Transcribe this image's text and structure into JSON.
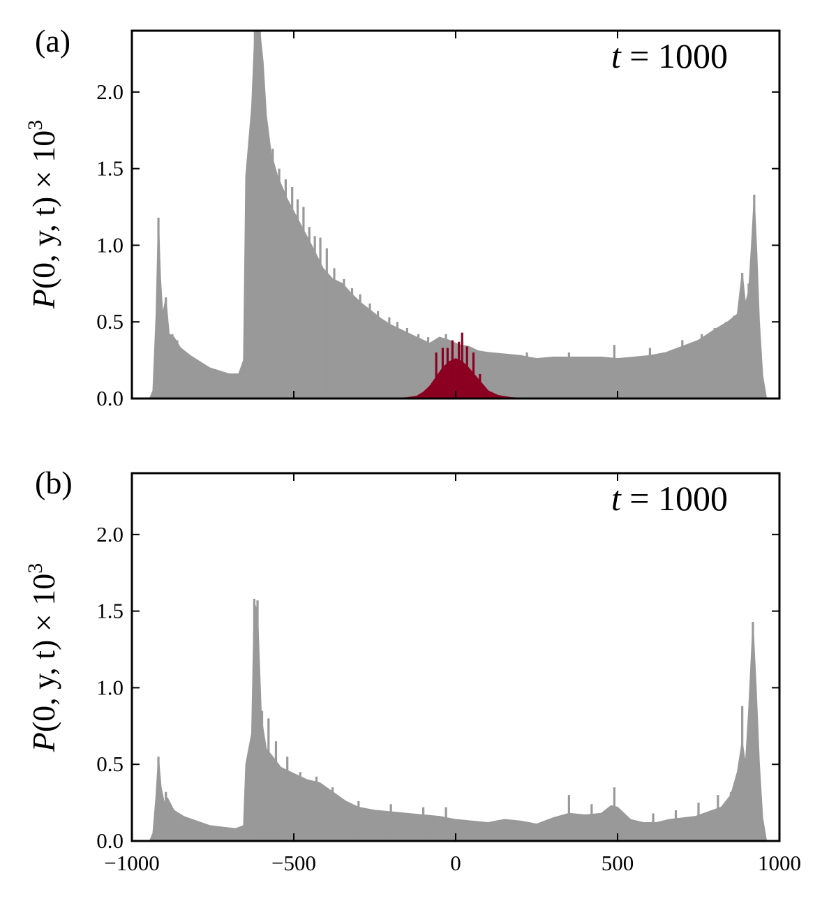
{
  "chart_data": [
    {
      "type": "area",
      "panel_label": "(a)",
      "annotation": {
        "text": "t = 1000",
        "var": "t",
        "eq": "=",
        "value": "1000"
      },
      "ylabel": {
        "prefix": "P",
        "args": "(0, y, t)",
        "times": "×",
        "base": "10",
        "exp": "3"
      },
      "xlim": [
        -1000,
        1000
      ],
      "ylim": [
        0,
        2.4
      ],
      "xticks": [
        -1000,
        -500,
        0,
        500,
        1000
      ],
      "show_xticklabels": false,
      "yticks": [
        0.0,
        0.5,
        1.0,
        1.5,
        2.0
      ],
      "ytick_labels": [
        "0.0",
        "0.5",
        "1.0",
        "1.5",
        "2.0"
      ],
      "series": [
        {
          "name": "gray",
          "color": "#999999",
          "envelope": [
            [
              -945,
              0.0
            ],
            [
              -935,
              0.05
            ],
            [
              -925,
              0.55
            ],
            [
              -918,
              1.18
            ],
            [
              -912,
              0.8
            ],
            [
              -905,
              0.55
            ],
            [
              -895,
              0.65
            ],
            [
              -885,
              0.42
            ],
            [
              -870,
              0.4
            ],
            [
              -850,
              0.33
            ],
            [
              -820,
              0.28
            ],
            [
              -790,
              0.24
            ],
            [
              -760,
              0.2
            ],
            [
              -730,
              0.18
            ],
            [
              -700,
              0.16
            ],
            [
              -670,
              0.16
            ],
            [
              -655,
              0.25
            ],
            [
              -648,
              1.45
            ],
            [
              -630,
              1.9
            ],
            [
              -620,
              2.4
            ],
            [
              -605,
              2.4
            ],
            [
              -595,
              2.2
            ],
            [
              -585,
              1.85
            ],
            [
              -570,
              1.6
            ],
            [
              -550,
              1.45
            ],
            [
              -520,
              1.3
            ],
            [
              -500,
              1.22
            ],
            [
              -470,
              1.1
            ],
            [
              -440,
              0.98
            ],
            [
              -410,
              0.85
            ],
            [
              -380,
              0.78
            ],
            [
              -350,
              0.75
            ],
            [
              -320,
              0.68
            ],
            [
              -290,
              0.62
            ],
            [
              -260,
              0.57
            ],
            [
              -230,
              0.52
            ],
            [
              -200,
              0.48
            ],
            [
              -170,
              0.45
            ],
            [
              -140,
              0.42
            ],
            [
              -110,
              0.39
            ],
            [
              -80,
              0.36
            ],
            [
              -50,
              0.4
            ],
            [
              -20,
              0.38
            ],
            [
              10,
              0.35
            ],
            [
              40,
              0.34
            ],
            [
              70,
              0.31
            ],
            [
              100,
              0.3
            ],
            [
              150,
              0.29
            ],
            [
              200,
              0.28
            ],
            [
              250,
              0.26
            ],
            [
              300,
              0.27
            ],
            [
              350,
              0.27
            ],
            [
              400,
              0.27
            ],
            [
              450,
              0.27
            ],
            [
              500,
              0.26
            ],
            [
              550,
              0.27
            ],
            [
              600,
              0.28
            ],
            [
              650,
              0.3
            ],
            [
              700,
              0.34
            ],
            [
              750,
              0.38
            ],
            [
              800,
              0.45
            ],
            [
              840,
              0.5
            ],
            [
              870,
              0.55
            ],
            [
              885,
              0.82
            ],
            [
              895,
              0.62
            ],
            [
              905,
              0.7
            ],
            [
              915,
              1.05
            ],
            [
              922,
              1.32
            ],
            [
              930,
              0.95
            ],
            [
              938,
              0.5
            ],
            [
              948,
              0.15
            ],
            [
              960,
              0.0
            ]
          ],
          "spikes": [
            [
              -918,
              1.18
            ],
            [
              -895,
              0.66
            ],
            [
              -875,
              0.42
            ],
            [
              -860,
              0.38
            ],
            [
              -620,
              2.4
            ],
            [
              -605,
              2.4
            ],
            [
              -585,
              1.75
            ],
            [
              -565,
              1.63
            ],
            [
              -545,
              1.5
            ],
            [
              -525,
              1.43
            ],
            [
              -505,
              1.38
            ],
            [
              -488,
              1.3
            ],
            [
              -470,
              1.25
            ],
            [
              -452,
              1.12
            ],
            [
              -435,
              1.06
            ],
            [
              -418,
              1.05
            ],
            [
              -398,
              0.98
            ],
            [
              -375,
              0.85
            ],
            [
              -345,
              0.78
            ],
            [
              -320,
              0.72
            ],
            [
              -295,
              0.68
            ],
            [
              -265,
              0.62
            ],
            [
              -240,
              0.57
            ],
            [
              -205,
              0.53
            ],
            [
              -180,
              0.5
            ],
            [
              -150,
              0.46
            ],
            [
              -115,
              0.42
            ],
            [
              -85,
              0.4
            ],
            [
              -30,
              0.42
            ],
            [
              220,
              0.3
            ],
            [
              350,
              0.3
            ],
            [
              490,
              0.35
            ],
            [
              600,
              0.33
            ],
            [
              700,
              0.38
            ],
            [
              760,
              0.42
            ],
            [
              800,
              0.46
            ],
            [
              835,
              0.5
            ],
            [
              860,
              0.54
            ],
            [
              885,
              0.82
            ],
            [
              905,
              0.75
            ],
            [
              922,
              1.33
            ]
          ]
        },
        {
          "name": "red",
          "color": "#8b0021",
          "envelope": [
            [
              -190,
              0.0
            ],
            [
              -150,
              0.005
            ],
            [
              -120,
              0.015
            ],
            [
              -100,
              0.04
            ],
            [
              -80,
              0.08
            ],
            [
              -60,
              0.14
            ],
            [
              -40,
              0.2
            ],
            [
              -20,
              0.24
            ],
            [
              0,
              0.26
            ],
            [
              20,
              0.24
            ],
            [
              40,
              0.2
            ],
            [
              60,
              0.15
            ],
            [
              80,
              0.1
            ],
            [
              100,
              0.05
            ],
            [
              130,
              0.02
            ],
            [
              170,
              0.006
            ],
            [
              210,
              0.0
            ]
          ],
          "spikes": [
            [
              -60,
              0.3
            ],
            [
              -40,
              0.33
            ],
            [
              -25,
              0.33
            ],
            [
              -10,
              0.38
            ],
            [
              10,
              0.37
            ],
            [
              20,
              0.43
            ],
            [
              35,
              0.34
            ],
            [
              55,
              0.3
            ],
            [
              75,
              0.16
            ]
          ]
        }
      ]
    },
    {
      "type": "area",
      "panel_label": "(b)",
      "annotation": {
        "text": "t = 1000",
        "var": "t",
        "eq": "=",
        "value": "1000"
      },
      "ylabel": {
        "prefix": "P",
        "args": "(0, y, t)",
        "times": "×",
        "base": "10",
        "exp": "3"
      },
      "xlim": [
        -1000,
        1000
      ],
      "ylim": [
        0,
        2.4
      ],
      "xticks": [
        -1000,
        -500,
        0,
        500,
        1000
      ],
      "xtick_labels": [
        "−1000",
        "−500",
        "0",
        "500",
        "1000"
      ],
      "show_xticklabels": true,
      "yticks": [
        0.0,
        0.5,
        1.0,
        1.5,
        2.0
      ],
      "ytick_labels": [
        "0.0",
        "0.5",
        "1.0",
        "1.5",
        "2.0"
      ],
      "series": [
        {
          "name": "gray",
          "color": "#999999",
          "envelope": [
            [
              -945,
              0.0
            ],
            [
              -935,
              0.05
            ],
            [
              -925,
              0.3
            ],
            [
              -918,
              0.55
            ],
            [
              -910,
              0.35
            ],
            [
              -900,
              0.25
            ],
            [
              -890,
              0.28
            ],
            [
              -870,
              0.2
            ],
            [
              -840,
              0.16
            ],
            [
              -800,
              0.13
            ],
            [
              -760,
              0.1
            ],
            [
              -720,
              0.09
            ],
            [
              -680,
              0.08
            ],
            [
              -655,
              0.1
            ],
            [
              -648,
              0.5
            ],
            [
              -630,
              0.7
            ],
            [
              -622,
              1.55
            ],
            [
              -612,
              1.5
            ],
            [
              -600,
              0.8
            ],
            [
              -585,
              0.6
            ],
            [
              -565,
              0.55
            ],
            [
              -540,
              0.48
            ],
            [
              -500,
              0.44
            ],
            [
              -460,
              0.4
            ],
            [
              -420,
              0.38
            ],
            [
              -380,
              0.32
            ],
            [
              -340,
              0.26
            ],
            [
              -300,
              0.22
            ],
            [
              -250,
              0.2
            ],
            [
              -200,
              0.19
            ],
            [
              -150,
              0.18
            ],
            [
              -100,
              0.17
            ],
            [
              -50,
              0.16
            ],
            [
              0,
              0.14
            ],
            [
              50,
              0.13
            ],
            [
              100,
              0.12
            ],
            [
              150,
              0.14
            ],
            [
              200,
              0.13
            ],
            [
              250,
              0.11
            ],
            [
              300,
              0.15
            ],
            [
              350,
              0.18
            ],
            [
              400,
              0.17
            ],
            [
              450,
              0.18
            ],
            [
              480,
              0.23
            ],
            [
              500,
              0.22
            ],
            [
              540,
              0.14
            ],
            [
              580,
              0.12
            ],
            [
              620,
              0.12
            ],
            [
              660,
              0.14
            ],
            [
              700,
              0.15
            ],
            [
              740,
              0.16
            ],
            [
              780,
              0.19
            ],
            [
              820,
              0.22
            ],
            [
              850,
              0.3
            ],
            [
              870,
              0.45
            ],
            [
              885,
              0.65
            ],
            [
              895,
              0.5
            ],
            [
              905,
              0.85
            ],
            [
              918,
              1.42
            ],
            [
              928,
              1.0
            ],
            [
              938,
              0.5
            ],
            [
              948,
              0.15
            ],
            [
              960,
              0.0
            ]
          ],
          "spikes": [
            [
              -918,
              0.55
            ],
            [
              -895,
              0.32
            ],
            [
              -622,
              1.58
            ],
            [
              -612,
              1.57
            ],
            [
              -598,
              0.85
            ],
            [
              -578,
              0.8
            ],
            [
              -555,
              0.65
            ],
            [
              -520,
              0.55
            ],
            [
              -480,
              0.45
            ],
            [
              -430,
              0.42
            ],
            [
              -380,
              0.35
            ],
            [
              -300,
              0.26
            ],
            [
              -200,
              0.24
            ],
            [
              -100,
              0.22
            ],
            [
              -30,
              0.22
            ],
            [
              350,
              0.3
            ],
            [
              420,
              0.24
            ],
            [
              490,
              0.35
            ],
            [
              610,
              0.18
            ],
            [
              680,
              0.2
            ],
            [
              750,
              0.25
            ],
            [
              810,
              0.3
            ],
            [
              850,
              0.32
            ],
            [
              885,
              0.88
            ],
            [
              918,
              1.43
            ]
          ]
        }
      ]
    }
  ]
}
